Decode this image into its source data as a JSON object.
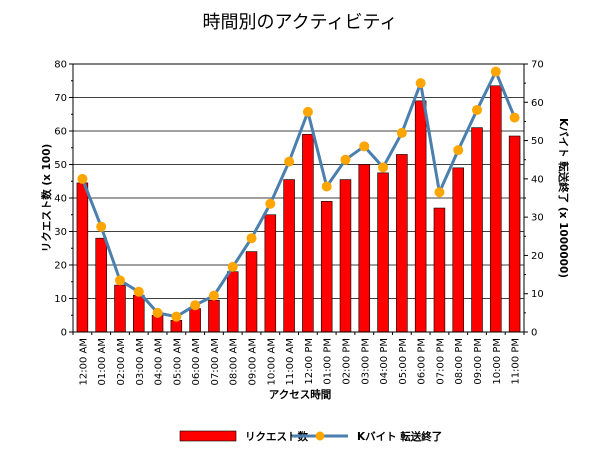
{
  "chart_data": {
    "type": "bar",
    "title": "時間別のアクティビティ",
    "xlabel": "アクセス時間",
    "ylabel": "リクエスト数 (x 100)",
    "y2label": "Kバイト 転送終了 (x 1000000)",
    "ylim": [
      0,
      80
    ],
    "y2lim": [
      0,
      70
    ],
    "yticks": [
      0,
      10,
      20,
      30,
      40,
      50,
      60,
      70,
      80
    ],
    "y2ticks": [
      0,
      10,
      20,
      30,
      40,
      50,
      60,
      70
    ],
    "grid": true,
    "legend_position": "bottom",
    "categories": [
      "12:00 AM",
      "01:00 AM",
      "02:00 AM",
      "03:00 AM",
      "04:00 AM",
      "05:00 AM",
      "06:00 AM",
      "07:00 AM",
      "08:00 AM",
      "09:00 AM",
      "10:00 AM",
      "11:00 AM",
      "12:00 PM",
      "01:00 PM",
      "02:00 PM",
      "03:00 PM",
      "04:00 PM",
      "05:00 PM",
      "06:00 PM",
      "07:00 PM",
      "08:00 PM",
      "09:00 PM",
      "10:00 PM",
      "11:00 PM"
    ],
    "series": [
      {
        "name": "リクエスト数",
        "type": "bar",
        "axis": "left",
        "color": "#ff0000",
        "values": [
          44.5,
          28,
          14,
          11,
          5,
          3.5,
          7,
          9.5,
          18,
          24,
          35,
          45.5,
          59,
          39,
          45.5,
          50,
          47.5,
          53,
          69,
          37,
          49,
          61,
          73.5,
          58.5
        ]
      },
      {
        "name": "Kバイト 転送終了",
        "type": "line",
        "axis": "right",
        "color": "#4a7fae",
        "marker_color": "#ffa500",
        "values": [
          40,
          27.5,
          13.5,
          10.5,
          5,
          4,
          7,
          9.5,
          17,
          24.5,
          33.5,
          44.5,
          57.5,
          38,
          45,
          48.5,
          43,
          52,
          65,
          36.5,
          47.5,
          58,
          68,
          56
        ]
      }
    ]
  }
}
